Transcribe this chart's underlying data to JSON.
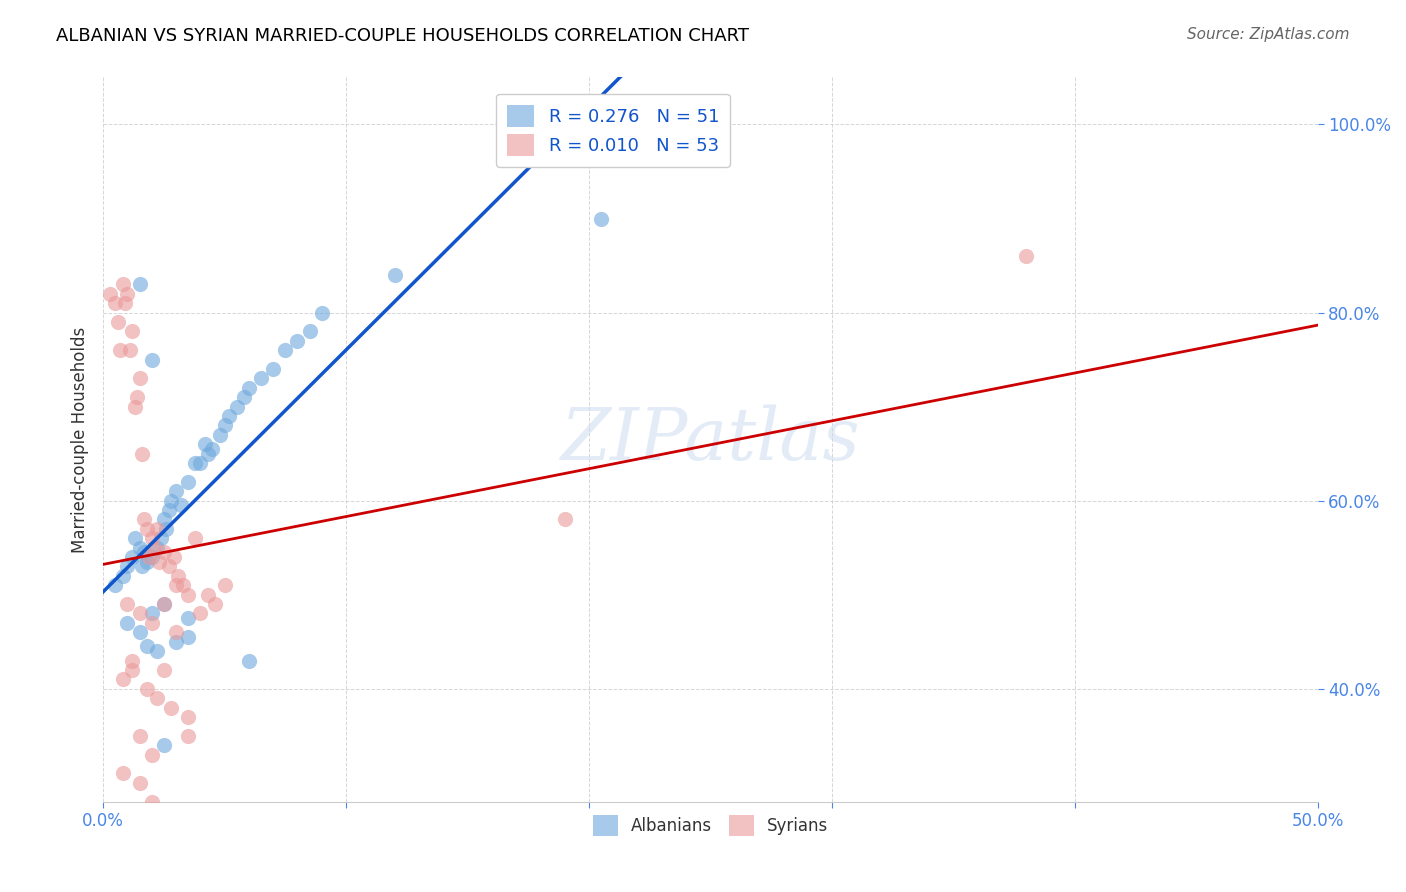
{
  "title": "ALBANIAN VS SYRIAN MARRIED-COUPLE HOUSEHOLDS CORRELATION CHART",
  "source": "Source: ZipAtlas.com",
  "xlabel": "",
  "ylabel": "Married-couple Households",
  "watermark": "ZIPatlas",
  "legend_albanian": "R = 0.276   N = 51",
  "legend_syrian": "R = 0.010   N = 53",
  "albanian_color": "#6fa8dc",
  "syrian_color": "#ea9999",
  "albanian_line_color": "#1155cc",
  "syrian_line_color": "#cc0000",
  "title_color": "#000000",
  "source_color": "#666666",
  "axis_label_color": "#4a86e8",
  "tick_color": "#4a86e8",
  "background_color": "#ffffff",
  "grid_color": "#cccccc",
  "xlim": [
    0.0,
    0.5
  ],
  "ylim": [
    0.28,
    1.05
  ],
  "xticks": [
    0.0,
    0.1,
    0.2,
    0.3,
    0.4,
    0.5
  ],
  "xtick_labels": [
    "0.0%",
    "",
    "",
    "",
    "",
    "50.0%"
  ],
  "yticks": [
    0.4,
    0.6,
    0.8,
    1.0
  ],
  "ytick_labels": [
    "40.0%",
    "60.0%",
    "80.0%",
    "100.0%"
  ],
  "albanian_x": [
    0.005,
    0.008,
    0.01,
    0.012,
    0.013,
    0.015,
    0.016,
    0.017,
    0.018,
    0.02,
    0.022,
    0.024,
    0.025,
    0.026,
    0.027,
    0.028,
    0.03,
    0.032,
    0.035,
    0.038,
    0.04,
    0.042,
    0.043,
    0.045,
    0.048,
    0.05,
    0.052,
    0.055,
    0.058,
    0.06,
    0.065,
    0.07,
    0.075,
    0.08,
    0.085,
    0.09,
    0.01,
    0.015,
    0.02,
    0.025,
    0.03,
    0.035,
    0.018,
    0.022,
    0.035,
    0.205,
    0.12,
    0.06,
    0.015,
    0.02,
    0.025
  ],
  "albanian_y": [
    0.51,
    0.52,
    0.53,
    0.54,
    0.56,
    0.55,
    0.53,
    0.545,
    0.535,
    0.54,
    0.55,
    0.56,
    0.58,
    0.57,
    0.59,
    0.6,
    0.61,
    0.595,
    0.62,
    0.64,
    0.64,
    0.66,
    0.65,
    0.655,
    0.67,
    0.68,
    0.69,
    0.7,
    0.71,
    0.72,
    0.73,
    0.74,
    0.76,
    0.77,
    0.78,
    0.8,
    0.47,
    0.46,
    0.48,
    0.49,
    0.45,
    0.455,
    0.445,
    0.44,
    0.475,
    0.9,
    0.84,
    0.43,
    0.83,
    0.75,
    0.34
  ],
  "syrian_x": [
    0.003,
    0.005,
    0.006,
    0.007,
    0.008,
    0.009,
    0.01,
    0.011,
    0.012,
    0.013,
    0.014,
    0.015,
    0.016,
    0.017,
    0.018,
    0.019,
    0.02,
    0.021,
    0.022,
    0.023,
    0.025,
    0.027,
    0.029,
    0.031,
    0.033,
    0.035,
    0.038,
    0.04,
    0.043,
    0.046,
    0.05,
    0.01,
    0.015,
    0.02,
    0.025,
    0.03,
    0.008,
    0.012,
    0.018,
    0.022,
    0.028,
    0.035,
    0.015,
    0.02,
    0.035,
    0.19,
    0.38,
    0.012,
    0.008,
    0.015,
    0.02,
    0.025,
    0.03
  ],
  "syrian_y": [
    0.82,
    0.81,
    0.79,
    0.76,
    0.83,
    0.81,
    0.82,
    0.76,
    0.78,
    0.7,
    0.71,
    0.73,
    0.65,
    0.58,
    0.57,
    0.54,
    0.56,
    0.55,
    0.57,
    0.535,
    0.545,
    0.53,
    0.54,
    0.52,
    0.51,
    0.5,
    0.56,
    0.48,
    0.5,
    0.49,
    0.51,
    0.49,
    0.48,
    0.47,
    0.49,
    0.46,
    0.41,
    0.42,
    0.4,
    0.39,
    0.38,
    0.37,
    0.35,
    0.33,
    0.35,
    0.58,
    0.86,
    0.43,
    0.31,
    0.3,
    0.28,
    0.42,
    0.51
  ],
  "dpi": 100,
  "figsize": [
    14.06,
    8.92
  ]
}
